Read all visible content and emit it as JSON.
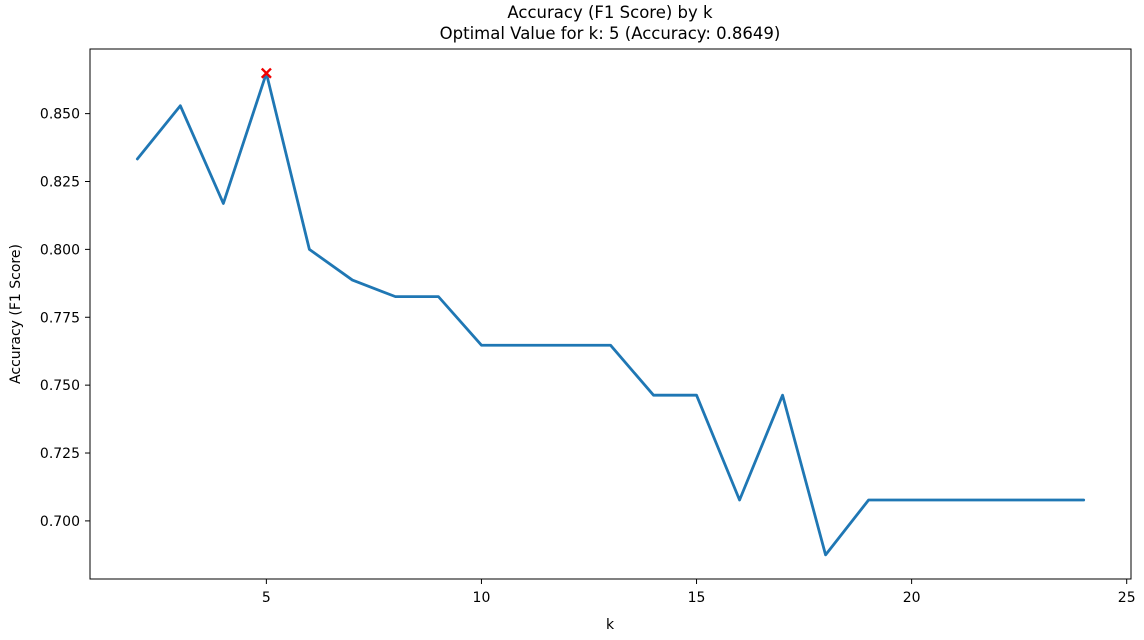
{
  "chart_data": {
    "type": "line",
    "title": "Accuracy (F1 Score) by k",
    "subtitle": "Optimal Value for k: 5 (Accuracy: 0.8649)",
    "xlabel": "k",
    "ylabel": "Accuracy (F1 Score)",
    "series": [
      {
        "name": "Accuracy (F1 Score)",
        "x": [
          2,
          3,
          4,
          5,
          6,
          7,
          8,
          9,
          10,
          11,
          12,
          13,
          14,
          15,
          16,
          17,
          18,
          19,
          20,
          21,
          22,
          23,
          24
        ],
        "y": [
          0.8333,
          0.8529,
          0.8169,
          0.8649,
          0.8,
          0.7887,
          0.7826,
          0.7826,
          0.7647,
          0.7647,
          0.7647,
          0.7647,
          0.7463,
          0.7463,
          0.7077,
          0.7463,
          0.6875,
          0.7077,
          0.7077,
          0.7077,
          0.7077,
          0.7077,
          0.7077
        ]
      }
    ],
    "optimal_point": {
      "k": 5,
      "accuracy": 0.8649,
      "marker": "x"
    },
    "xticks": [
      5,
      10,
      15,
      20,
      25
    ],
    "ytick_values": [
      0.7,
      0.725,
      0.75,
      0.775,
      0.8,
      0.825,
      0.85
    ],
    "ytick_labels": [
      "0.700",
      "0.725",
      "0.750",
      "0.775",
      "0.800",
      "0.825",
      "0.850"
    ],
    "xlim": [
      0.9,
      25.1
    ],
    "ylim": [
      0.6786,
      0.8738
    ],
    "grid": false,
    "legend_position": "none",
    "colors": {
      "line": "#1f77b4",
      "optimal_marker": "#f00000",
      "spine": "#000000",
      "text": "#000000"
    }
  }
}
